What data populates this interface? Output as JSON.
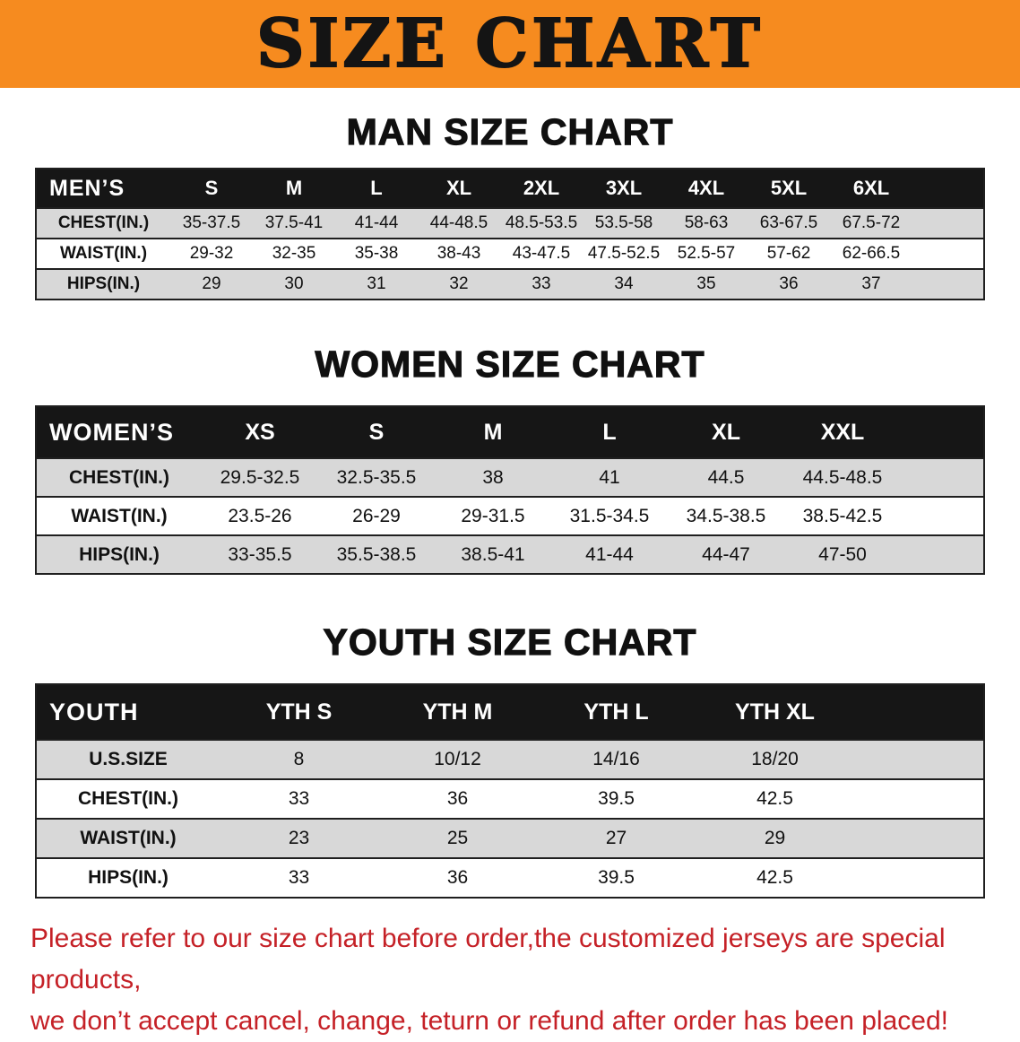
{
  "banner": {
    "title": "SIZE CHART",
    "bg_color": "#F68B1F"
  },
  "sections": [
    {
      "heading": "MAN SIZE CHART",
      "table": {
        "corner": "MEN’S",
        "columns": [
          "S",
          "M",
          "L",
          "XL",
          "2XL",
          "3XL",
          "4XL",
          "5XL",
          "6XL"
        ],
        "rows": [
          {
            "label": "CHEST(IN.)",
            "values": [
              "35-37.5",
              "37.5-41",
              "41-44",
              "44-48.5",
              "48.5-53.5",
              "53.5-58",
              "58-63",
              "63-67.5",
              "67.5-72"
            ]
          },
          {
            "label": "WAIST(IN.)",
            "values": [
              "29-32",
              "32-35",
              "35-38",
              "38-43",
              "43-47.5",
              "47.5-52.5",
              "52.5-57",
              "57-62",
              "62-66.5"
            ]
          },
          {
            "label": "HIPS(IN.)",
            "values": [
              "29",
              "30",
              "31",
              "32",
              "33",
              "34",
              "35",
              "36",
              "37"
            ]
          }
        ]
      }
    },
    {
      "heading": "WOMEN SIZE CHART",
      "table": {
        "corner": "WOMEN’S",
        "columns": [
          "XS",
          "S",
          "M",
          "L",
          "XL",
          "XXL"
        ],
        "rows": [
          {
            "label": "CHEST(IN.)",
            "values": [
              "29.5-32.5",
              "32.5-35.5",
              "38",
              "41",
              "44.5",
              "44.5-48.5"
            ]
          },
          {
            "label": "WAIST(IN.)",
            "values": [
              "23.5-26",
              "26-29",
              "29-31.5",
              "31.5-34.5",
              "34.5-38.5",
              "38.5-42.5"
            ]
          },
          {
            "label": "HIPS(IN.)",
            "values": [
              "33-35.5",
              "35.5-38.5",
              "38.5-41",
              "41-44",
              "44-47",
              "47-50"
            ]
          }
        ]
      }
    },
    {
      "heading": "YOUTH SIZE CHART",
      "table": {
        "corner": "YOUTH",
        "columns": [
          "YTH S",
          "YTH M",
          "YTH L",
          "YTH XL"
        ],
        "rows": [
          {
            "label": "U.S.SIZE",
            "values": [
              "8",
              "10/12",
              "14/16",
              "18/20"
            ]
          },
          {
            "label": "CHEST(IN.)",
            "values": [
              "33",
              "36",
              "39.5",
              "42.5"
            ]
          },
          {
            "label": "WAIST(IN.)",
            "values": [
              "23",
              "25",
              "27",
              "29"
            ]
          },
          {
            "label": "HIPS(IN.)",
            "values": [
              "33",
              "36",
              "39.5",
              "42.5"
            ]
          }
        ]
      }
    }
  ],
  "disclaimer": {
    "line1": "Please refer to our size chart before order,the customized jerseys are special products,",
    "line2": "we don’t accept cancel, change, teturn or refund after order has been placed!",
    "text_color": "#C52127"
  }
}
